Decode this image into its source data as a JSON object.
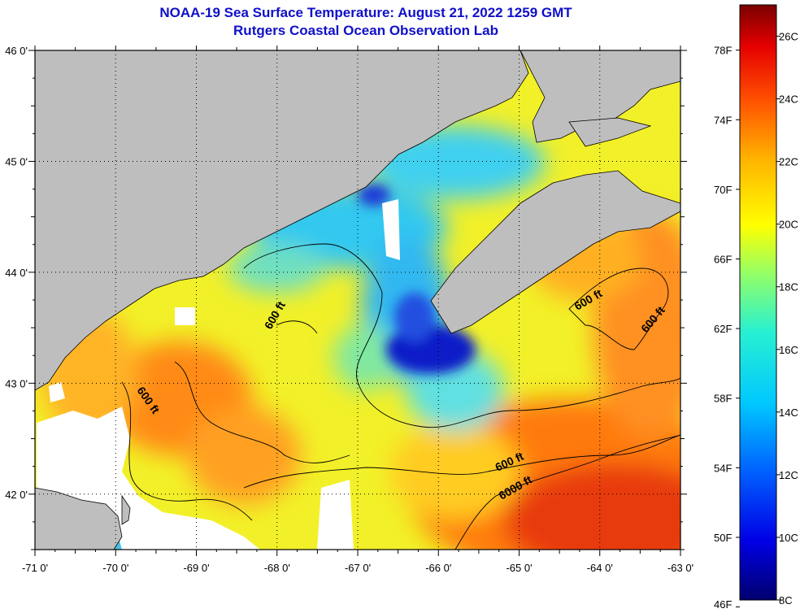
{
  "title": {
    "line1": "NOAA-19 Sea Surface Temperature:  August 21, 2022 1259 GMT",
    "line2": "Rutgers Coastal Ocean Observation Lab"
  },
  "map": {
    "lat_labels": [
      "46 0'",
      "45 0'",
      "44 0'",
      "43 0'",
      "42 0'"
    ],
    "lat_values": [
      46,
      45,
      44,
      43,
      42
    ],
    "lon_labels": [
      "-71 0'",
      "-70 0'",
      "-69 0'",
      "-68 0'",
      "-67 0'",
      "-66 0'",
      "-65 0'",
      "-64 0'",
      "-63 0'"
    ],
    "lon_values": [
      -71,
      -70,
      -69,
      -68,
      -67,
      -66,
      -65,
      -64,
      -63
    ],
    "lat_range": [
      41.5,
      46.0
    ],
    "lon_range": [
      -71.0,
      -63.0
    ],
    "contour_labels": [
      "600 ft",
      "600 ft",
      "600 ft",
      "600 ft",
      "600 ft",
      "6000 ft"
    ],
    "colors": {
      "land": "#bebebe",
      "no_data": "#ffffff",
      "cold": "#0a1ec8",
      "cool": "#20b4f0",
      "mid": "#ffff1e",
      "warm": "#ff8c00",
      "hot": "#e61e00"
    }
  },
  "colorbar": {
    "fahrenheit_labels": [
      "78F",
      "74F",
      "70F",
      "66F",
      "62F",
      "58F",
      "54F",
      "50F",
      "46F"
    ],
    "celsius_labels": [
      "26C",
      "24C",
      "22C",
      "20C",
      "18C",
      "16C",
      "14C",
      "12C",
      "10C",
      "8C"
    ],
    "range_c": [
      8,
      27
    ]
  }
}
